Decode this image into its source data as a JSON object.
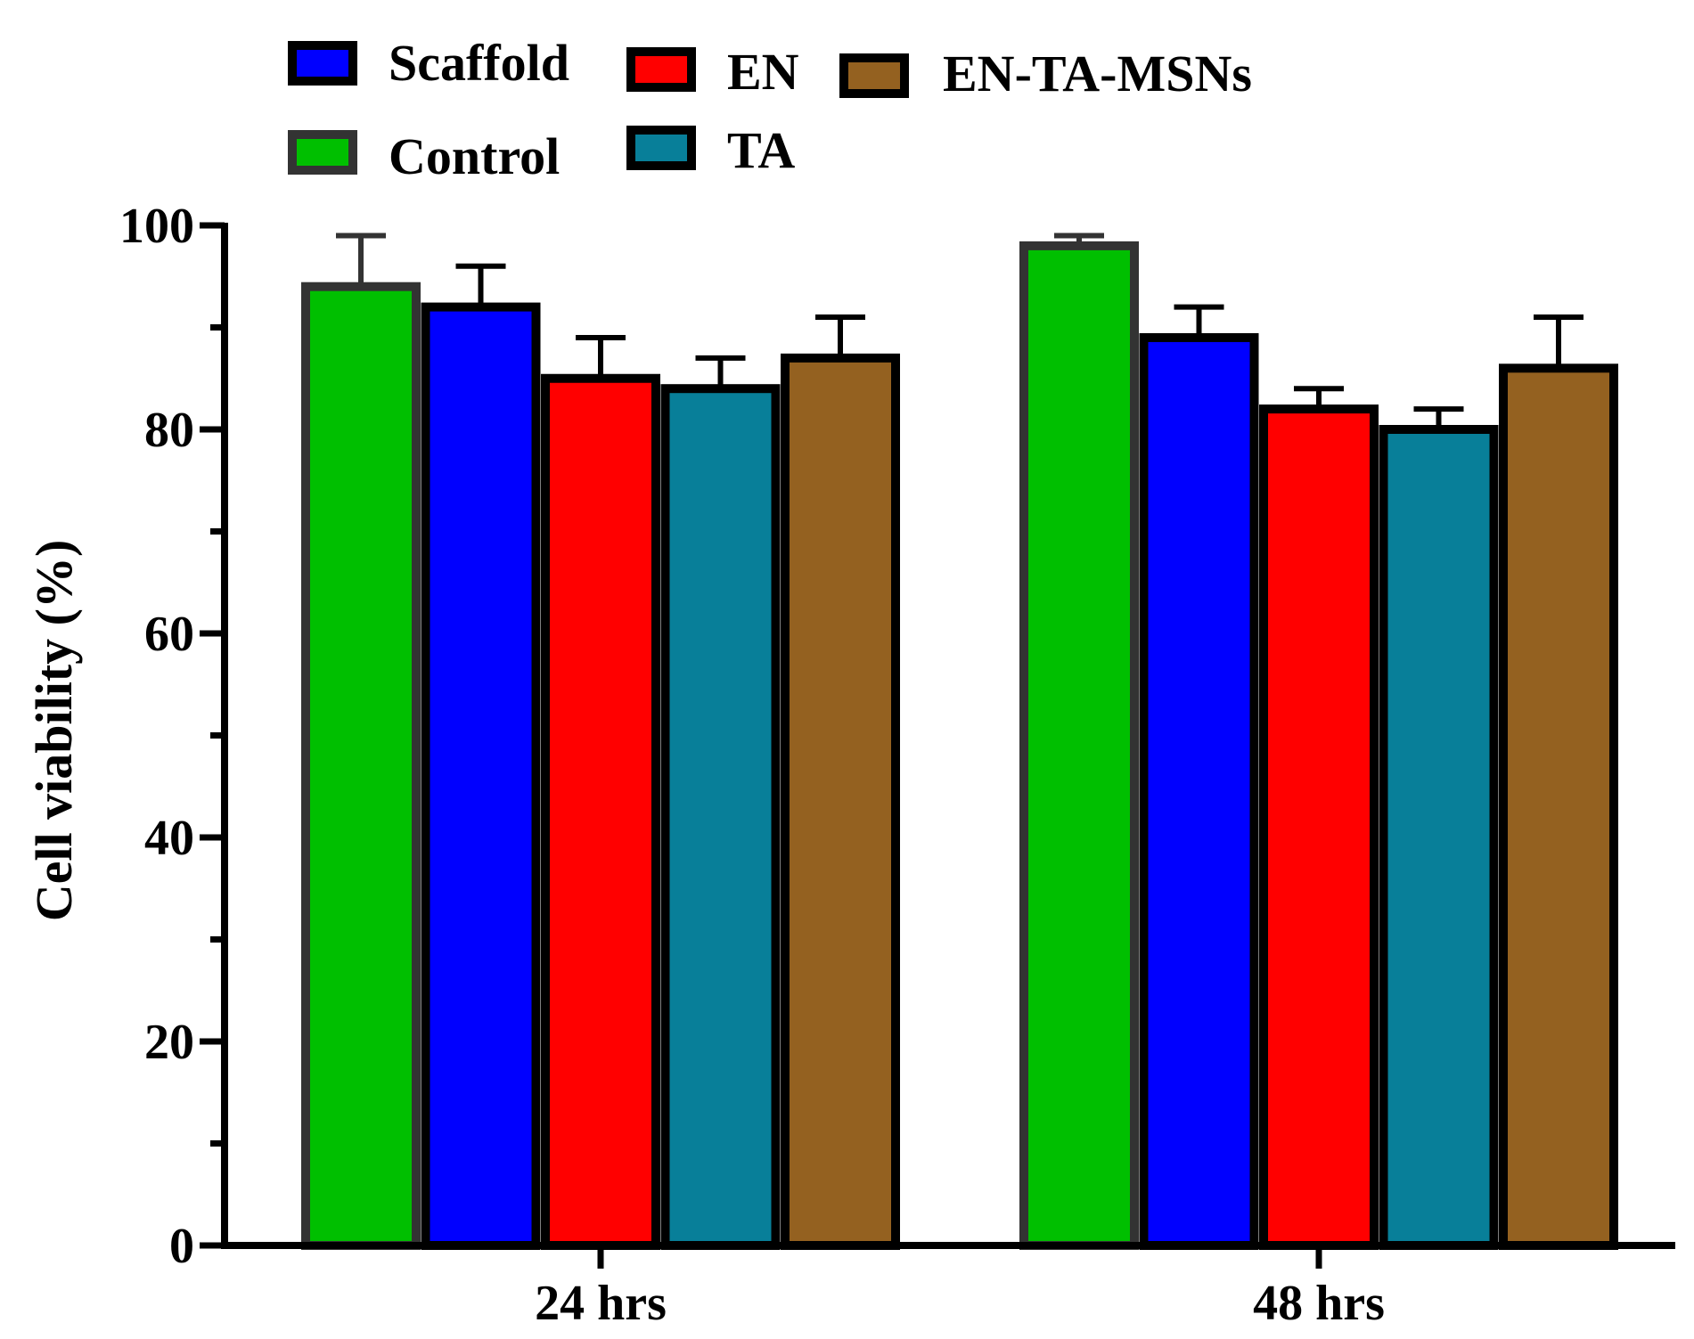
{
  "chart_data": {
    "type": "bar",
    "title": "",
    "xlabel": "",
    "ylabel": "Cell viability (%)",
    "ylim": [
      0,
      100
    ],
    "yticks": [
      "0",
      "20",
      "40",
      "60",
      "80",
      "100"
    ],
    "categories": [
      "24 hrs",
      "48 hrs"
    ],
    "series": [
      {
        "name": "Control",
        "color": "#00BF00",
        "values": [
          94,
          98
        ],
        "errors": [
          5,
          1
        ]
      },
      {
        "name": "Scaffold",
        "color": "#0000FF",
        "values": [
          92,
          89
        ],
        "errors": [
          4,
          3
        ]
      },
      {
        "name": "EN",
        "color": "#FF0000",
        "values": [
          85,
          82
        ],
        "errors": [
          4,
          2
        ]
      },
      {
        "name": "TA",
        "color": "#087F99",
        "values": [
          84,
          80
        ],
        "errors": [
          3,
          2
        ]
      },
      {
        "name": "EN-TA-MSNs",
        "color": "#946120",
        "values": [
          87,
          86
        ],
        "errors": [
          4,
          5
        ]
      }
    ],
    "legend": {
      "placement": "top",
      "entries": [
        "Scaffold",
        "EN",
        "EN-TA-MSNs",
        "Control",
        "TA"
      ]
    }
  }
}
